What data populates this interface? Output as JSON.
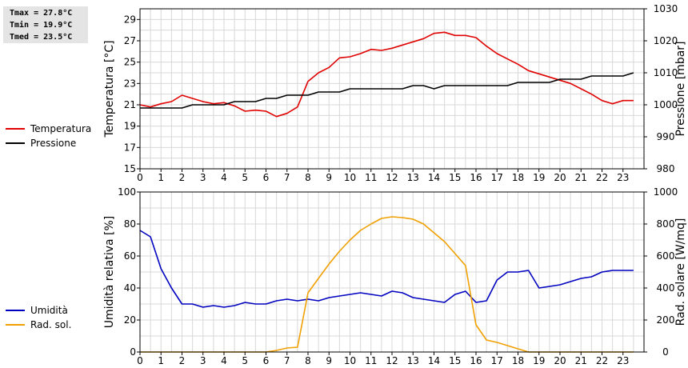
{
  "stats": {
    "tmax": "Tmax = 27.8°C",
    "tmin": "Tmin = 19.9°C",
    "tmed": "Tmed = 23.5°C"
  },
  "colors": {
    "temperatura": "#e00000",
    "pressione": "#000000",
    "umidita": "#0000c0",
    "radiazione": "#f0a000",
    "grid": "#d8d8d8"
  },
  "chart_data": [
    {
      "type": "line",
      "grid": true,
      "legend_position": "left",
      "x_ticks": [
        0,
        1,
        2,
        3,
        4,
        5,
        6,
        7,
        8,
        9,
        10,
        11,
        12,
        13,
        14,
        15,
        16,
        17,
        18,
        19,
        20,
        21,
        22,
        23
      ],
      "xlim": [
        0,
        24
      ],
      "ylabel": "Temperatura [°C]",
      "ylim": [
        15,
        30
      ],
      "y_ticks": [
        15,
        17,
        19,
        21,
        23,
        25,
        27,
        29
      ],
      "y2label": "Pressione [mbar]",
      "y2lim": [
        980,
        1030
      ],
      "y2_ticks": [
        980,
        990,
        1000,
        1010,
        1020,
        1030
      ],
      "series": [
        {
          "name": "Temperatura",
          "axis": "left",
          "x": [
            0,
            0.5,
            1,
            1.5,
            2,
            2.5,
            3,
            3.5,
            4,
            4.5,
            5,
            5.5,
            6,
            6.5,
            7,
            7.5,
            8,
            8.5,
            9,
            9.5,
            10,
            10.5,
            11,
            11.5,
            12,
            12.5,
            13,
            13.5,
            14,
            14.5,
            15,
            15.5,
            16,
            16.5,
            17,
            17.5,
            18,
            18.5,
            19,
            19.5,
            20,
            20.5,
            21,
            21.5,
            22,
            22.5,
            23,
            23.5
          ],
          "values": [
            21.0,
            20.8,
            21.1,
            21.3,
            21.9,
            21.6,
            21.3,
            21.1,
            21.2,
            20.9,
            20.4,
            20.5,
            20.4,
            19.9,
            20.2,
            20.8,
            23.2,
            24.0,
            24.5,
            25.4,
            25.5,
            25.8,
            26.2,
            26.1,
            26.3,
            26.6,
            26.9,
            27.2,
            27.7,
            27.8,
            27.5,
            27.5,
            27.3,
            26.5,
            25.8,
            25.3,
            24.8,
            24.2,
            23.9,
            23.6,
            23.3,
            23.0,
            22.5,
            22.0,
            21.4,
            21.1,
            21.4,
            21.4
          ]
        },
        {
          "name": "Pressione",
          "axis": "right",
          "x": [
            0,
            0.5,
            1,
            1.5,
            2,
            2.5,
            3,
            3.5,
            4,
            4.5,
            5,
            5.5,
            6,
            6.5,
            7,
            7.5,
            8,
            8.5,
            9,
            9.5,
            10,
            10.5,
            11,
            11.5,
            12,
            12.5,
            13,
            13.5,
            14,
            14.5,
            15,
            15.5,
            16,
            16.5,
            17,
            17.5,
            18,
            18.5,
            19,
            19.5,
            20,
            20.5,
            21,
            21.5,
            22,
            22.5,
            23,
            23.5
          ],
          "values": [
            999,
            999,
            999,
            999,
            999,
            1000,
            1000,
            1000,
            1000,
            1001,
            1001,
            1001,
            1002,
            1002,
            1003,
            1003,
            1003,
            1004,
            1004,
            1004,
            1005,
            1005,
            1005,
            1005,
            1005,
            1005,
            1006,
            1006,
            1005,
            1006,
            1006,
            1006,
            1006,
            1006,
            1006,
            1006,
            1007,
            1007,
            1007,
            1007,
            1008,
            1008,
            1008,
            1009,
            1009,
            1009,
            1009,
            1010
          ]
        }
      ]
    },
    {
      "type": "line",
      "grid": true,
      "legend_position": "left",
      "x_ticks": [
        0,
        1,
        2,
        3,
        4,
        5,
        6,
        7,
        8,
        9,
        10,
        11,
        12,
        13,
        14,
        15,
        16,
        17,
        18,
        19,
        20,
        21,
        22,
        23
      ],
      "xlim": [
        0,
        24
      ],
      "ylabel": "Umidità relativa [%]",
      "ylim": [
        0,
        100
      ],
      "y_ticks": [
        0,
        20,
        40,
        60,
        80,
        100
      ],
      "y2label": "Rad. solare [W/mq]",
      "y2lim": [
        0,
        1000
      ],
      "y2_ticks": [
        0,
        200,
        400,
        600,
        800,
        1000
      ],
      "series": [
        {
          "name": "Umidità",
          "axis": "left",
          "x": [
            0,
            0.5,
            1,
            1.5,
            2,
            2.5,
            3,
            3.5,
            4,
            4.5,
            5,
            5.5,
            6,
            6.5,
            7,
            7.5,
            8,
            8.5,
            9,
            9.5,
            10,
            10.5,
            11,
            11.5,
            12,
            12.5,
            13,
            13.5,
            14,
            14.5,
            15,
            15.5,
            16,
            16.5,
            17,
            17.5,
            18,
            18.5,
            19,
            19.5,
            20,
            20.5,
            21,
            21.5,
            22,
            22.5,
            23,
            23.5
          ],
          "values": [
            76,
            72,
            52,
            40,
            30,
            30,
            28,
            29,
            28,
            29,
            31,
            30,
            30,
            32,
            33,
            32,
            33,
            32,
            34,
            35,
            36,
            37,
            36,
            35,
            38,
            37,
            34,
            33,
            32,
            31,
            36,
            38,
            31,
            32,
            45,
            50,
            50,
            51,
            40,
            41,
            42,
            44,
            46,
            47,
            50,
            51,
            51,
            51
          ]
        },
        {
          "name": "Rad. sol.",
          "axis": "right",
          "x": [
            0,
            1,
            2,
            3,
            4,
            5,
            6,
            6.5,
            7,
            7.5,
            8,
            8.5,
            9,
            9.5,
            10,
            10.5,
            11,
            11.5,
            12,
            12.5,
            13,
            13.5,
            14,
            14.5,
            15,
            15.5,
            16,
            16.5,
            17,
            17.5,
            18,
            18.5,
            19,
            20,
            21,
            22,
            23,
            23.5
          ],
          "values": [
            0,
            0,
            0,
            0,
            0,
            0,
            0,
            10,
            25,
            30,
            370,
            460,
            550,
            630,
            700,
            760,
            800,
            835,
            845,
            840,
            830,
            800,
            745,
            690,
            615,
            540,
            170,
            75,
            60,
            40,
            20,
            0,
            0,
            0,
            0,
            0,
            0,
            0
          ]
        }
      ]
    }
  ]
}
